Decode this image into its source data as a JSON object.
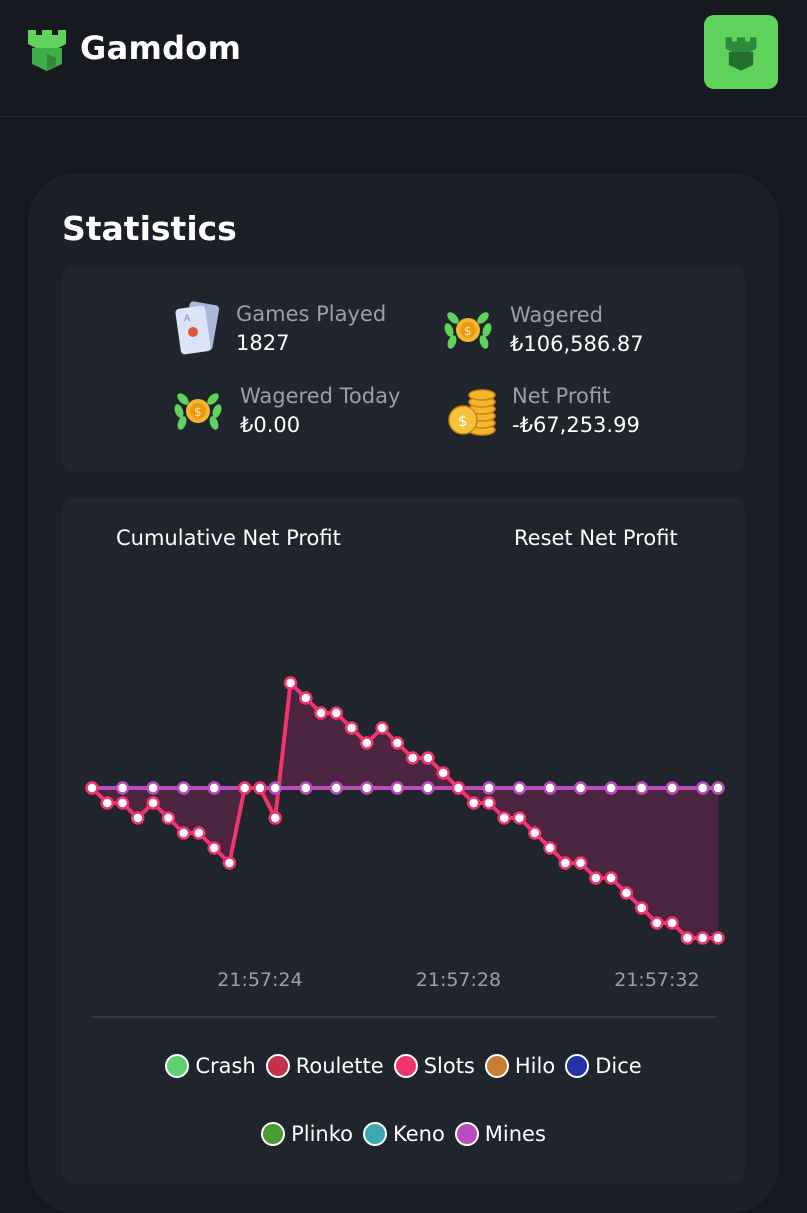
{
  "header": {
    "brand": "Gamdom",
    "brand_color": "#5fd35b",
    "logo_icon": "castle-icon",
    "menu_icon": "castle-icon"
  },
  "stats": {
    "title": "Statistics",
    "games_played": {
      "label": "Games Played",
      "value": "1827",
      "icon": "playing-cards-icon"
    },
    "wagered": {
      "label": "Wagered",
      "value": "₺106,586.87",
      "icon": "laurel-coin-icon"
    },
    "wagered_today": {
      "label": "Wagered Today",
      "value": "₺0.00",
      "icon": "laurel-coin-icon"
    },
    "net_profit": {
      "label": "Net Profit",
      "value": "-₺67,253.99",
      "icon": "coin-stack-icon"
    }
  },
  "chart_panel": {
    "title_button": "Cumulative Net Profit",
    "reset_button": "Reset Net Profit"
  },
  "chart_data": {
    "type": "line",
    "x_tick_labels": [
      "21:57:24",
      "21:57:28",
      "21:57:32"
    ],
    "baseline": 0,
    "ylim": [
      -11,
      8
    ],
    "series": [
      {
        "name": "Slots",
        "color": "#f0346e",
        "points": [
          [
            0,
            0
          ],
          [
            1,
            -1
          ],
          [
            2,
            -1
          ],
          [
            3,
            -2
          ],
          [
            4,
            -1
          ],
          [
            5,
            -2
          ],
          [
            6,
            -3
          ],
          [
            7,
            -3
          ],
          [
            8,
            -4
          ],
          [
            9,
            -5
          ],
          [
            10,
            0
          ],
          [
            11,
            0
          ],
          [
            12,
            -2
          ],
          [
            13,
            7
          ],
          [
            14,
            6
          ],
          [
            15,
            5
          ],
          [
            16,
            5
          ],
          [
            17,
            4
          ],
          [
            18,
            3
          ],
          [
            19,
            4
          ],
          [
            20,
            3
          ],
          [
            21,
            2
          ],
          [
            22,
            2
          ],
          [
            23,
            1
          ],
          [
            24,
            0
          ],
          [
            25,
            -1
          ],
          [
            26,
            -1
          ],
          [
            27,
            -2
          ],
          [
            28,
            -2
          ],
          [
            29,
            -3
          ],
          [
            30,
            -4
          ],
          [
            31,
            -5
          ],
          [
            32,
            -5
          ],
          [
            33,
            -6
          ],
          [
            34,
            -6
          ],
          [
            35,
            -7
          ],
          [
            36,
            -8
          ],
          [
            37,
            -9
          ],
          [
            38,
            -9
          ],
          [
            39,
            -10
          ],
          [
            40,
            -10
          ],
          [
            41,
            -10
          ]
        ]
      },
      {
        "name": "Mines",
        "color": "#b74ebc",
        "points": [
          [
            0,
            0
          ],
          [
            41,
            0
          ]
        ]
      }
    ],
    "legend": [
      {
        "name": "Crash",
        "color": "#5cd16f"
      },
      {
        "name": "Roulette",
        "color": "#c43148"
      },
      {
        "name": "Slots",
        "color": "#f0346e"
      },
      {
        "name": "Hilo",
        "color": "#c97d32"
      },
      {
        "name": "Dice",
        "color": "#2233a8"
      },
      {
        "name": "Plinko",
        "color": "#4a9a35"
      },
      {
        "name": "Keno",
        "color": "#3fa7b1"
      },
      {
        "name": "Mines",
        "color": "#b74ebc"
      }
    ]
  }
}
